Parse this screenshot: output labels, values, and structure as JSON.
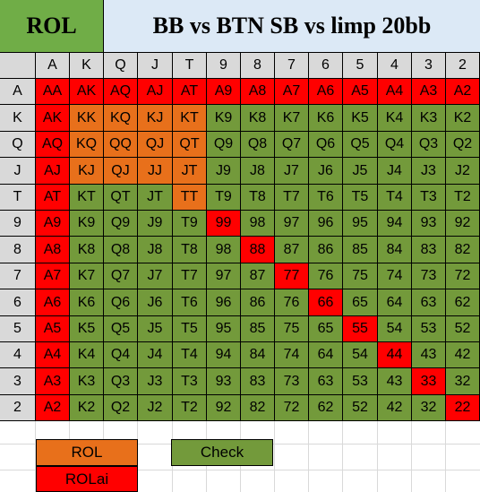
{
  "title": {
    "tag": "ROL",
    "heading": "BB vs BTN SB vs limp 20bb"
  },
  "ranks": [
    "A",
    "K",
    "Q",
    "J",
    "T",
    "9",
    "8",
    "7",
    "6",
    "5",
    "4",
    "3",
    "2"
  ],
  "colors": {
    "ROL": "#e8701b",
    "ROLai": "#ff0000",
    "Check": "#739a3b"
  },
  "matrix": [
    [
      "r",
      "r",
      "r",
      "r",
      "r",
      "r",
      "r",
      "r",
      "r",
      "r",
      "r",
      "r",
      "r"
    ],
    [
      "r",
      "o",
      "o",
      "o",
      "o",
      "g",
      "g",
      "g",
      "g",
      "g",
      "g",
      "g",
      "g"
    ],
    [
      "r",
      "o",
      "o",
      "o",
      "o",
      "g",
      "g",
      "g",
      "g",
      "g",
      "g",
      "g",
      "g"
    ],
    [
      "r",
      "o",
      "o",
      "o",
      "o",
      "g",
      "g",
      "g",
      "g",
      "g",
      "g",
      "g",
      "g"
    ],
    [
      "r",
      "g",
      "g",
      "g",
      "o",
      "g",
      "g",
      "g",
      "g",
      "g",
      "g",
      "g",
      "g"
    ],
    [
      "r",
      "g",
      "g",
      "g",
      "g",
      "r",
      "g",
      "g",
      "g",
      "g",
      "g",
      "g",
      "g"
    ],
    [
      "r",
      "g",
      "g",
      "g",
      "g",
      "g",
      "r",
      "g",
      "g",
      "g",
      "g",
      "g",
      "g"
    ],
    [
      "r",
      "g",
      "g",
      "g",
      "g",
      "g",
      "g",
      "r",
      "g",
      "g",
      "g",
      "g",
      "g"
    ],
    [
      "r",
      "g",
      "g",
      "g",
      "g",
      "g",
      "g",
      "g",
      "r",
      "g",
      "g",
      "g",
      "g"
    ],
    [
      "r",
      "g",
      "g",
      "g",
      "g",
      "g",
      "g",
      "g",
      "g",
      "r",
      "g",
      "g",
      "g"
    ],
    [
      "r",
      "g",
      "g",
      "g",
      "g",
      "g",
      "g",
      "g",
      "g",
      "g",
      "r",
      "g",
      "g"
    ],
    [
      "r",
      "g",
      "g",
      "g",
      "g",
      "g",
      "g",
      "g",
      "g",
      "g",
      "g",
      "r",
      "g"
    ],
    [
      "r",
      "g",
      "g",
      "g",
      "g",
      "g",
      "g",
      "g",
      "g",
      "g",
      "g",
      "g",
      "r"
    ]
  ],
  "legend": {
    "rol": "ROL",
    "rolai": "ROLai",
    "check": "Check"
  }
}
